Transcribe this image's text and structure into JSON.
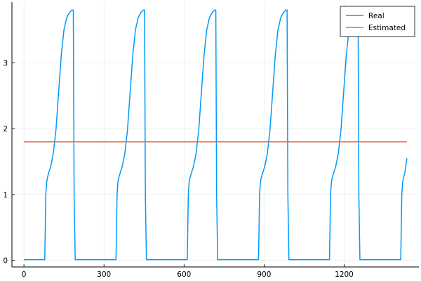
{
  "chart_data": {
    "type": "line",
    "title": "",
    "xlabel": "",
    "ylabel": "",
    "xlim": [
      -45,
      1480
    ],
    "ylim": [
      -0.1,
      3.92
    ],
    "xticks": [
      0,
      300,
      600,
      900,
      1200
    ],
    "yticks": [
      0,
      1,
      2,
      3
    ],
    "grid": true,
    "legend": "top-right",
    "series": [
      {
        "name": "Real",
        "color": "#009af9",
        "x": [
          0,
          78,
          80,
          82,
          85,
          88,
          92,
          100,
          110,
          120,
          130,
          140,
          150,
          160,
          170,
          180,
          185,
          188,
          192,
          200,
          345,
          347,
          349,
          352,
          355,
          360,
          368,
          378,
          388,
          398,
          408,
          418,
          428,
          438,
          448,
          452,
          455,
          459,
          467,
          612,
          614,
          616,
          619,
          622,
          627,
          635,
          645,
          655,
          665,
          675,
          685,
          695,
          705,
          715,
          719,
          722,
          726,
          734,
          879,
          881,
          883,
          886,
          889,
          894,
          902,
          912,
          922,
          932,
          942,
          952,
          962,
          972,
          982,
          986,
          989,
          993,
          1001,
          1145,
          1147,
          1149,
          1152,
          1155,
          1160,
          1168,
          1178,
          1188,
          1198,
          1208,
          1218,
          1228,
          1238,
          1248,
          1252,
          1255,
          1259,
          1267,
          1412,
          1414,
          1416,
          1419,
          1422,
          1427,
          1435
        ],
        "y": [
          0.01,
          0.01,
          0.5,
          1.0,
          1.18,
          1.25,
          1.32,
          1.42,
          1.62,
          1.98,
          2.55,
          3.12,
          3.5,
          3.68,
          3.76,
          3.8,
          3.8,
          1.0,
          0.01,
          0.01,
          0.01,
          0.5,
          1.0,
          1.18,
          1.25,
          1.32,
          1.42,
          1.62,
          1.98,
          2.55,
          3.12,
          3.5,
          3.68,
          3.76,
          3.8,
          3.8,
          1.0,
          0.01,
          0.01,
          0.01,
          0.5,
          1.0,
          1.18,
          1.25,
          1.32,
          1.42,
          1.62,
          1.98,
          2.55,
          3.12,
          3.5,
          3.68,
          3.76,
          3.8,
          3.8,
          1.0,
          0.01,
          0.01,
          0.01,
          0.5,
          1.0,
          1.18,
          1.25,
          1.32,
          1.42,
          1.62,
          1.98,
          2.55,
          3.12,
          3.5,
          3.68,
          3.76,
          3.8,
          3.8,
          1.0,
          0.01,
          0.01,
          0.01,
          0.5,
          1.0,
          1.18,
          1.25,
          1.32,
          1.42,
          1.62,
          1.98,
          2.55,
          3.12,
          3.5,
          3.68,
          3.76,
          3.8,
          3.8,
          1.0,
          0.01,
          0.01,
          0.01,
          0.5,
          1.0,
          1.18,
          1.25,
          1.32,
          1.55
        ]
      },
      {
        "name": "Estimated",
        "color": "#e26f46",
        "x": [
          0,
          1435
        ],
        "y": [
          1.8,
          1.8
        ]
      }
    ]
  }
}
